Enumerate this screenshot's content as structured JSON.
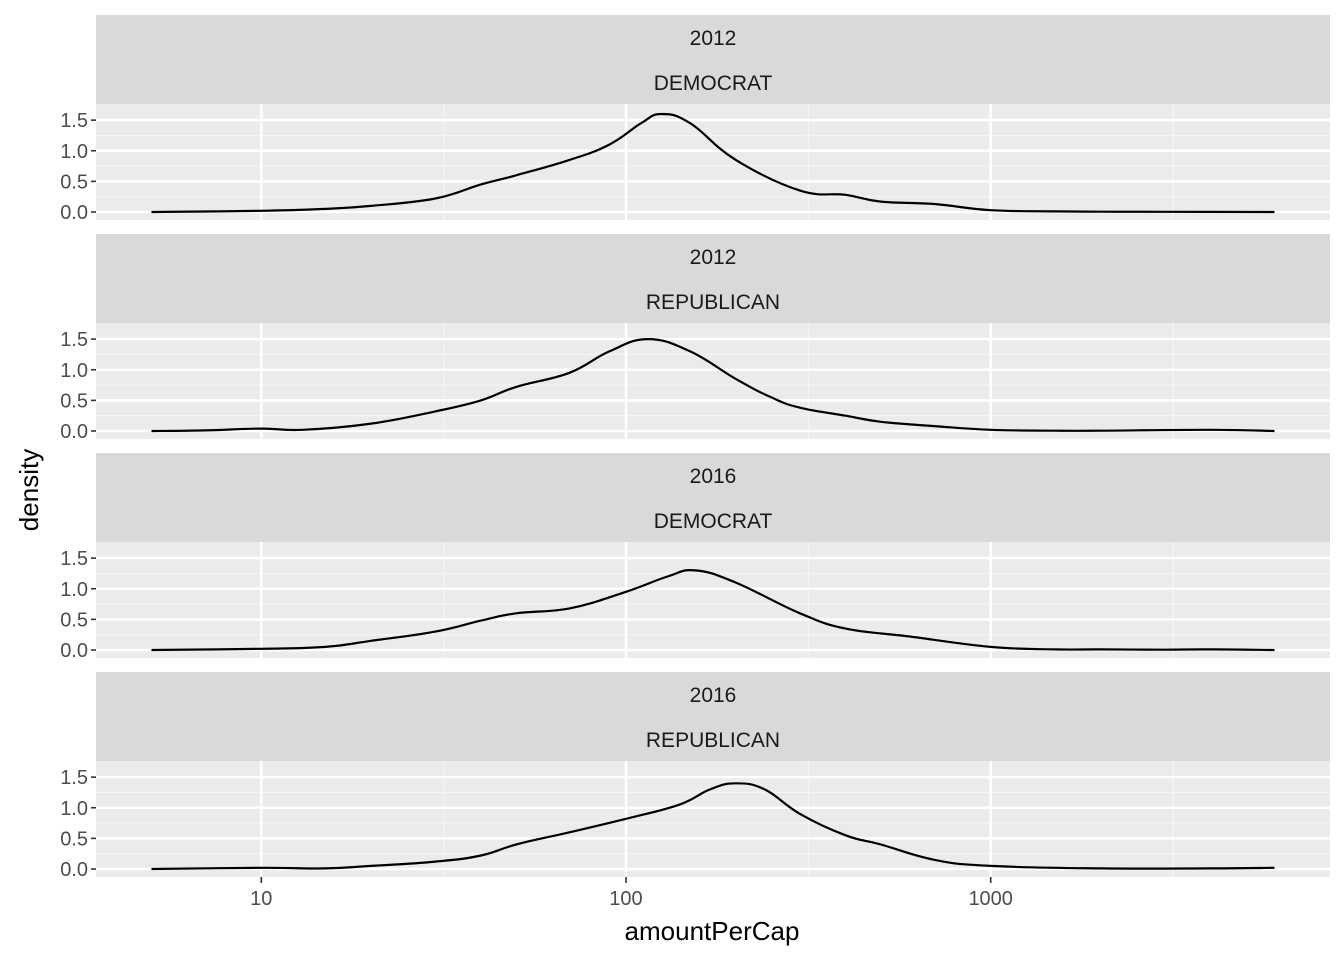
{
  "chart_data": {
    "type": "line",
    "subtype": "density-facets",
    "xlabel": "amountPerCap",
    "ylabel": "density",
    "x_scale": "log10",
    "xlim": [
      5,
      6000
    ],
    "ylim": [
      0,
      1.6
    ],
    "x_ticks": [
      {
        "value": 10,
        "label": "10"
      },
      {
        "value": 100,
        "label": "100"
      },
      {
        "value": 1000,
        "label": "1000"
      }
    ],
    "y_ticks": [
      {
        "value": 0,
        "label": "0.0"
      },
      {
        "value": 0.5,
        "label": "0.5"
      },
      {
        "value": 1,
        "label": "1.0"
      },
      {
        "value": 1.5,
        "label": "1.5"
      }
    ],
    "grid": true,
    "panels": [
      {
        "strip": [
          "2012",
          "DEMOCRAT"
        ],
        "x": [
          5,
          10,
          15,
          20,
          30,
          40,
          50,
          70,
          90,
          110,
          125,
          150,
          200,
          300,
          400,
          500,
          700,
          1000,
          1500,
          2000,
          3000,
          6000
        ],
        "y": [
          0,
          0.02,
          0.05,
          0.1,
          0.22,
          0.45,
          0.6,
          0.85,
          1.1,
          1.45,
          1.6,
          1.45,
          0.85,
          0.35,
          0.28,
          0.17,
          0.13,
          0.03,
          0.01,
          0.005,
          0.003,
          0
        ]
      },
      {
        "strip": [
          "2012",
          "REPUBLICAN"
        ],
        "x": [
          5,
          7,
          10,
          13,
          20,
          30,
          40,
          50,
          70,
          90,
          115,
          150,
          200,
          250,
          300,
          400,
          500,
          700,
          1000,
          1500,
          2000,
          4000,
          6000
        ],
        "y": [
          0,
          0.01,
          0.04,
          0.02,
          0.12,
          0.32,
          0.5,
          0.72,
          0.95,
          1.3,
          1.5,
          1.3,
          0.85,
          0.55,
          0.38,
          0.25,
          0.15,
          0.08,
          0.02,
          0.005,
          0.005,
          0.02,
          0
        ]
      },
      {
        "strip": [
          "2016",
          "DEMOCRAT"
        ],
        "x": [
          5,
          10,
          15,
          20,
          30,
          40,
          50,
          70,
          100,
          130,
          155,
          200,
          300,
          400,
          600,
          1000,
          1500,
          2000,
          3000,
          4000,
          6000
        ],
        "y": [
          0,
          0.02,
          0.05,
          0.15,
          0.3,
          0.48,
          0.6,
          0.68,
          0.95,
          1.2,
          1.3,
          1.1,
          0.6,
          0.35,
          0.22,
          0.05,
          0.01,
          0.01,
          0.005,
          0.01,
          0
        ]
      },
      {
        "strip": [
          "2016",
          "REPUBLICAN"
        ],
        "x": [
          5,
          10,
          15,
          20,
          30,
          40,
          50,
          70,
          100,
          140,
          170,
          200,
          240,
          300,
          400,
          500,
          700,
          1000,
          2000,
          4000,
          6000
        ],
        "y": [
          0,
          0.02,
          0.01,
          0.05,
          0.12,
          0.22,
          0.4,
          0.6,
          0.82,
          1.05,
          1.3,
          1.4,
          1.3,
          0.9,
          0.55,
          0.4,
          0.15,
          0.05,
          0.01,
          0.01,
          0.02
        ]
      }
    ]
  }
}
